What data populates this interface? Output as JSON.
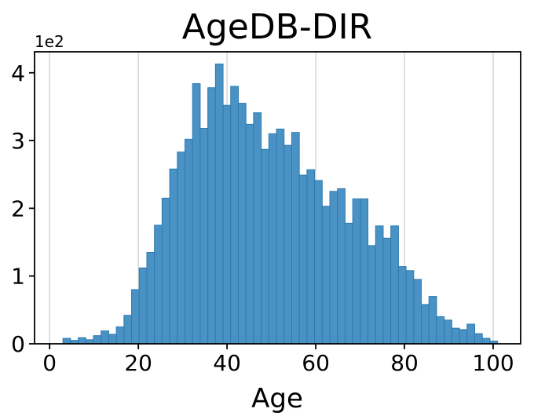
{
  "figure": {
    "title": "AgeDB-DIR",
    "xlabel": "Age",
    "y_offset_label": "1e2"
  },
  "chart_data": {
    "type": "bar",
    "subtype": "histogram",
    "title": "AgeDB-DIR",
    "xlabel": "Age",
    "ylabel": "",
    "y_scale_offset_label": "1e2",
    "bin_start": 3.0,
    "bin_width": 1.7193,
    "counts": [
      8,
      5,
      9,
      6,
      12,
      19,
      14,
      25,
      42,
      80,
      112,
      135,
      175,
      215,
      258,
      283,
      302,
      384,
      318,
      378,
      413,
      352,
      380,
      355,
      324,
      341,
      287,
      310,
      317,
      293,
      312,
      249,
      257,
      241,
      203,
      225,
      229,
      178,
      214,
      214,
      145,
      174,
      156,
      174,
      114,
      108,
      95,
      58,
      70,
      40,
      35,
      23,
      21,
      29,
      15,
      8,
      4
    ],
    "x_ticks": [
      0,
      20,
      40,
      60,
      80,
      100
    ],
    "x_tick_labels": [
      "0",
      "20",
      "40",
      "60",
      "80",
      "100"
    ],
    "y_ticks": [
      0,
      100,
      200,
      300,
      400
    ],
    "y_tick_labels": [
      "0",
      "1",
      "2",
      "3",
      "4"
    ],
    "xlim": [
      -3.4,
      106.2
    ],
    "ylim": [
      0,
      431
    ],
    "grid": "vertical-only",
    "legend": "none",
    "colors": {
      "bar_fill": "#4B92C4",
      "bar_edge": "#2B7BB3",
      "grid_line": "#D3D3D3",
      "axis_frame": "#000000",
      "text": "#000000",
      "background": "#FFFFFF"
    }
  }
}
